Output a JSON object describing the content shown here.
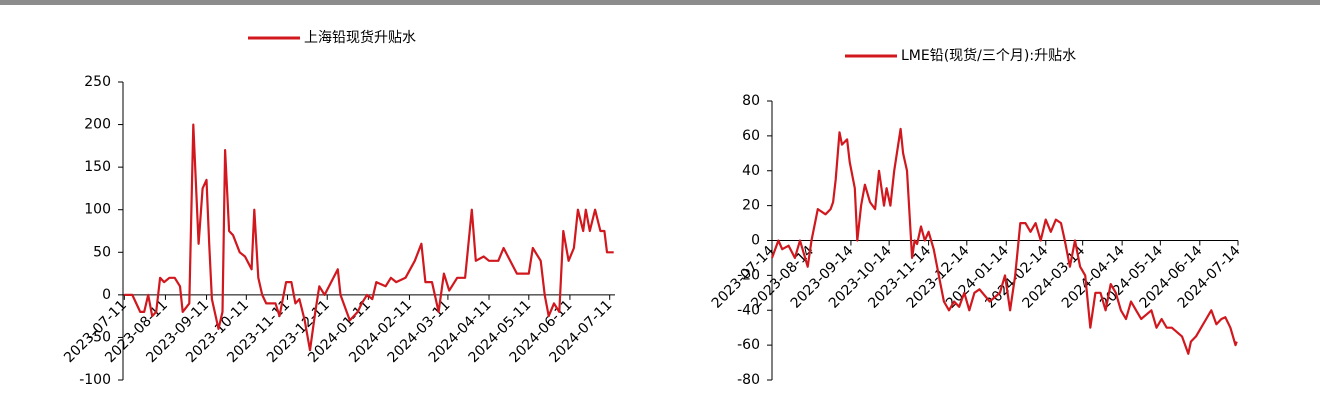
{
  "chart_data": [
    {
      "type": "line",
      "legend": "top",
      "series": [
        {
          "name": "上海铅现货升贴水",
          "color": "#d0181e",
          "x": [
            "2023-07-11",
            "2023-07-17",
            "2023-07-23",
            "2023-07-26",
            "2023-07-29",
            "2023-08-01",
            "2023-08-04",
            "2023-08-07",
            "2023-08-10",
            "2023-08-14",
            "2023-08-18",
            "2023-08-22",
            "2023-08-24",
            "2023-08-29",
            "2023-09-01",
            "2023-09-05",
            "2023-09-08",
            "2023-09-11",
            "2023-09-13",
            "2023-09-15",
            "2023-09-20",
            "2023-09-23",
            "2023-09-25",
            "2023-09-28",
            "2023-10-01",
            "2023-10-06",
            "2023-10-10",
            "2023-10-15",
            "2023-10-17",
            "2023-10-20",
            "2023-10-23",
            "2023-10-26",
            "2023-11-02",
            "2023-11-05",
            "2023-11-10",
            "2023-11-14",
            "2023-11-17",
            "2023-11-20",
            "2023-11-24",
            "2023-11-28",
            "2023-12-02",
            "2023-12-05",
            "2023-12-09",
            "2023-12-19",
            "2023-12-21",
            "2023-12-28",
            "2024-01-03",
            "2024-01-06",
            "2024-01-10",
            "2024-01-14",
            "2024-01-17",
            "2024-01-24",
            "2024-01-28",
            "2024-02-01",
            "2024-02-08",
            "2024-02-15",
            "2024-02-20",
            "2024-02-23",
            "2024-02-28",
            "2024-03-04",
            "2024-03-08",
            "2024-03-12",
            "2024-03-18",
            "2024-03-24",
            "2024-03-29",
            "2024-04-01",
            "2024-04-07",
            "2024-04-11",
            "2024-04-18",
            "2024-04-22",
            "2024-04-27",
            "2024-05-02",
            "2024-05-11",
            "2024-05-14",
            "2024-05-20",
            "2024-05-23",
            "2024-05-26",
            "2024-05-30",
            "2024-06-03",
            "2024-06-06",
            "2024-06-10",
            "2024-06-14",
            "2024-06-17",
            "2024-06-21",
            "2024-06-23",
            "2024-06-26",
            "2024-06-30",
            "2024-07-04",
            "2024-07-07",
            "2024-07-09",
            "2024-07-14"
          ],
          "values": [
            0,
            0,
            -20,
            -20,
            0,
            -25,
            -20,
            20,
            15,
            20,
            20,
            10,
            -20,
            -10,
            200,
            60,
            125,
            135,
            60,
            -5,
            -40,
            -20,
            170,
            75,
            70,
            50,
            45,
            30,
            100,
            20,
            0,
            -10,
            -10,
            -25,
            15,
            15,
            -10,
            -5,
            -30,
            -65,
            -20,
            10,
            0,
            30,
            0,
            -30,
            -20,
            -10,
            0,
            -5,
            15,
            10,
            20,
            15,
            20,
            40,
            60,
            15,
            15,
            -20,
            25,
            5,
            20,
            20,
            100,
            40,
            45,
            40,
            40,
            55,
            40,
            25,
            25,
            55,
            40,
            0,
            -25,
            -10,
            -20,
            75,
            40,
            55,
            100,
            75,
            100,
            75,
            100,
            75,
            75,
            50,
            50
          ]
        }
      ],
      "xlim": [
        "2023-07-10",
        "2024-07-15"
      ],
      "xticks": [
        "2023-07-11",
        "2023-08-11",
        "2023-09-11",
        "2023-10-11",
        "2023-11-11",
        "2023-12-11",
        "2024-01-11",
        "2024-02-11",
        "2024-03-11",
        "2024-04-11",
        "2024-05-11",
        "2024-06-11",
        "2024-07-11"
      ],
      "ylim": [
        -100,
        250
      ],
      "yticks": [
        250,
        200,
        150,
        100,
        50,
        0,
        -50,
        -100
      ]
    },
    {
      "type": "line",
      "legend": "top",
      "series": [
        {
          "name": "LME铅(现货/三个月):升贴水",
          "color": "#d0181e",
          "x": [
            "2023-07-14",
            "2023-07-19",
            "2023-07-22",
            "2023-07-27",
            "2023-08-01",
            "2023-08-05",
            "2023-08-11",
            "2023-08-14",
            "2023-08-19",
            "2023-08-25",
            "2023-08-29",
            "2023-08-31",
            "2023-09-02",
            "2023-09-05",
            "2023-09-07",
            "2023-09-11",
            "2023-09-13",
            "2023-09-17",
            "2023-09-19",
            "2023-09-22",
            "2023-09-25",
            "2023-09-29",
            "2023-10-03",
            "2023-10-06",
            "2023-10-10",
            "2023-10-12",
            "2023-10-15",
            "2023-10-18",
            "2023-10-23",
            "2023-10-25",
            "2023-10-28",
            "2023-11-01",
            "2023-11-03",
            "2023-11-05",
            "2023-11-08",
            "2023-11-11",
            "2023-11-14",
            "2023-11-18",
            "2023-11-22",
            "2023-11-26",
            "2023-11-30",
            "2023-12-04",
            "2023-12-08",
            "2023-12-12",
            "2023-12-16",
            "2023-12-20",
            "2023-12-24",
            "2024-01-01",
            "2024-01-09",
            "2024-01-13",
            "2024-01-17",
            "2024-01-21",
            "2024-01-25",
            "2024-01-29",
            "2024-02-02",
            "2024-02-06",
            "2024-02-10",
            "2024-02-14",
            "2024-02-18",
            "2024-02-22",
            "2024-02-26",
            "2024-02-29",
            "2024-03-04",
            "2024-03-08",
            "2024-03-12",
            "2024-03-16",
            "2024-03-20",
            "2024-03-24",
            "2024-03-28",
            "2024-04-01",
            "2024-04-05",
            "2024-04-09",
            "2024-04-13",
            "2024-04-17",
            "2024-04-21",
            "2024-04-25",
            "2024-04-29",
            "2024-05-07",
            "2024-05-11",
            "2024-05-15",
            "2024-05-19",
            "2024-05-23",
            "2024-05-31",
            "2024-06-05",
            "2024-06-07",
            "2024-06-11",
            "2024-06-15",
            "2024-06-19",
            "2024-06-23",
            "2024-06-27",
            "2024-07-01",
            "2024-07-04",
            "2024-07-08",
            "2024-07-12",
            "2024-07-13"
          ],
          "values": [
            -10,
            0,
            -5,
            -3,
            -10,
            0,
            -15,
            0,
            18,
            15,
            18,
            22,
            35,
            62,
            55,
            58,
            45,
            30,
            0,
            20,
            32,
            22,
            18,
            40,
            20,
            30,
            20,
            40,
            64,
            50,
            40,
            -10,
            0,
            -2,
            8,
            0,
            5,
            -5,
            -20,
            -35,
            -40,
            -35,
            -38,
            -30,
            -40,
            -30,
            -28,
            -35,
            -30,
            -20,
            -40,
            -20,
            10,
            10,
            5,
            10,
            0,
            12,
            5,
            12,
            10,
            0,
            -15,
            0,
            -15,
            -20,
            -50,
            -30,
            -30,
            -40,
            -25,
            -30,
            -40,
            -45,
            -35,
            -40,
            -45,
            -40,
            -50,
            -45,
            -50,
            -50,
            -55,
            -65,
            -58,
            -55,
            -50,
            -45,
            -40,
            -48,
            -45,
            -44,
            -50,
            -60,
            -58
          ]
        }
      ],
      "xlim": [
        "2023-07-14",
        "2024-07-14"
      ],
      "xticks": [
        "2023-07-14",
        "2023-08-14",
        "2023-09-14",
        "2023-10-14",
        "2023-11-14",
        "2023-12-14",
        "2024-01-14",
        "2024-02-14",
        "2024-03-14",
        "2024-04-14",
        "2024-05-14",
        "2024-06-14",
        "2024-07-14"
      ],
      "ylim": [
        -80,
        80
      ],
      "yticks": [
        80,
        60,
        40,
        20,
        0,
        -20,
        -40,
        -60,
        -80
      ]
    }
  ]
}
